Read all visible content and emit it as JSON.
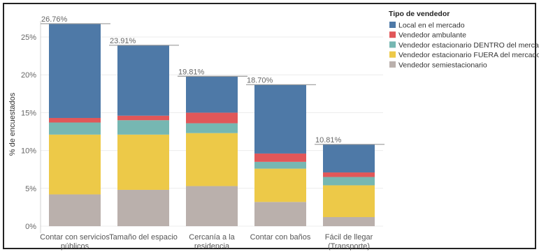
{
  "chart_data": {
    "type": "bar",
    "stacked": true,
    "ylabel": "% de encuestados",
    "ylim": [
      0,
      28
    ],
    "yticks": [
      0,
      5,
      10,
      15,
      20,
      25
    ],
    "ytick_labels": [
      "0%",
      "5%",
      "10%",
      "15%",
      "20%",
      "25%"
    ],
    "grid": true,
    "legend_title": "Tipo de vendedor",
    "legend_position": "top-right",
    "categories": [
      [
        "Contar con servicios",
        "públicos"
      ],
      [
        "Tamaño del espacio"
      ],
      [
        "Cercanía a la",
        "residencia"
      ],
      [
        "Contar con baños"
      ],
      [
        "Fácil de llegar",
        "(Transporte)"
      ]
    ],
    "totals": [
      "26.76%",
      "23.91%",
      "19.81%",
      "18.70%",
      "10.81%"
    ],
    "series": [
      {
        "name": "Vendedor semiestacionario",
        "color": "#BAB0AC",
        "values": [
          4.2,
          4.8,
          5.3,
          3.2,
          1.2
        ]
      },
      {
        "name": "Vendedor estacionario FUERA del mercado",
        "color": "#EDC948",
        "values": [
          7.9,
          7.3,
          7.0,
          4.4,
          4.2
        ]
      },
      {
        "name": "Vendedor estacionario DENTRO del mercado",
        "color": "#76B7B2",
        "values": [
          1.6,
          1.9,
          1.3,
          0.9,
          1.1
        ]
      },
      {
        "name": "Vendedor ambulante",
        "color": "#E15759",
        "values": [
          0.6,
          0.6,
          1.4,
          1.1,
          0.6
        ]
      },
      {
        "name": "Local en el mercado",
        "color": "#4E79A7",
        "values": [
          12.46,
          9.31,
          4.81,
          9.1,
          3.71
        ]
      }
    ],
    "legend_order": [
      "Local en el mercado",
      "Vendedor ambulante",
      "Vendedor estacionario DENTRO del mercado",
      "Vendedor estacionario FUERA del mercado",
      "Vendedor semiestacionario"
    ]
  }
}
